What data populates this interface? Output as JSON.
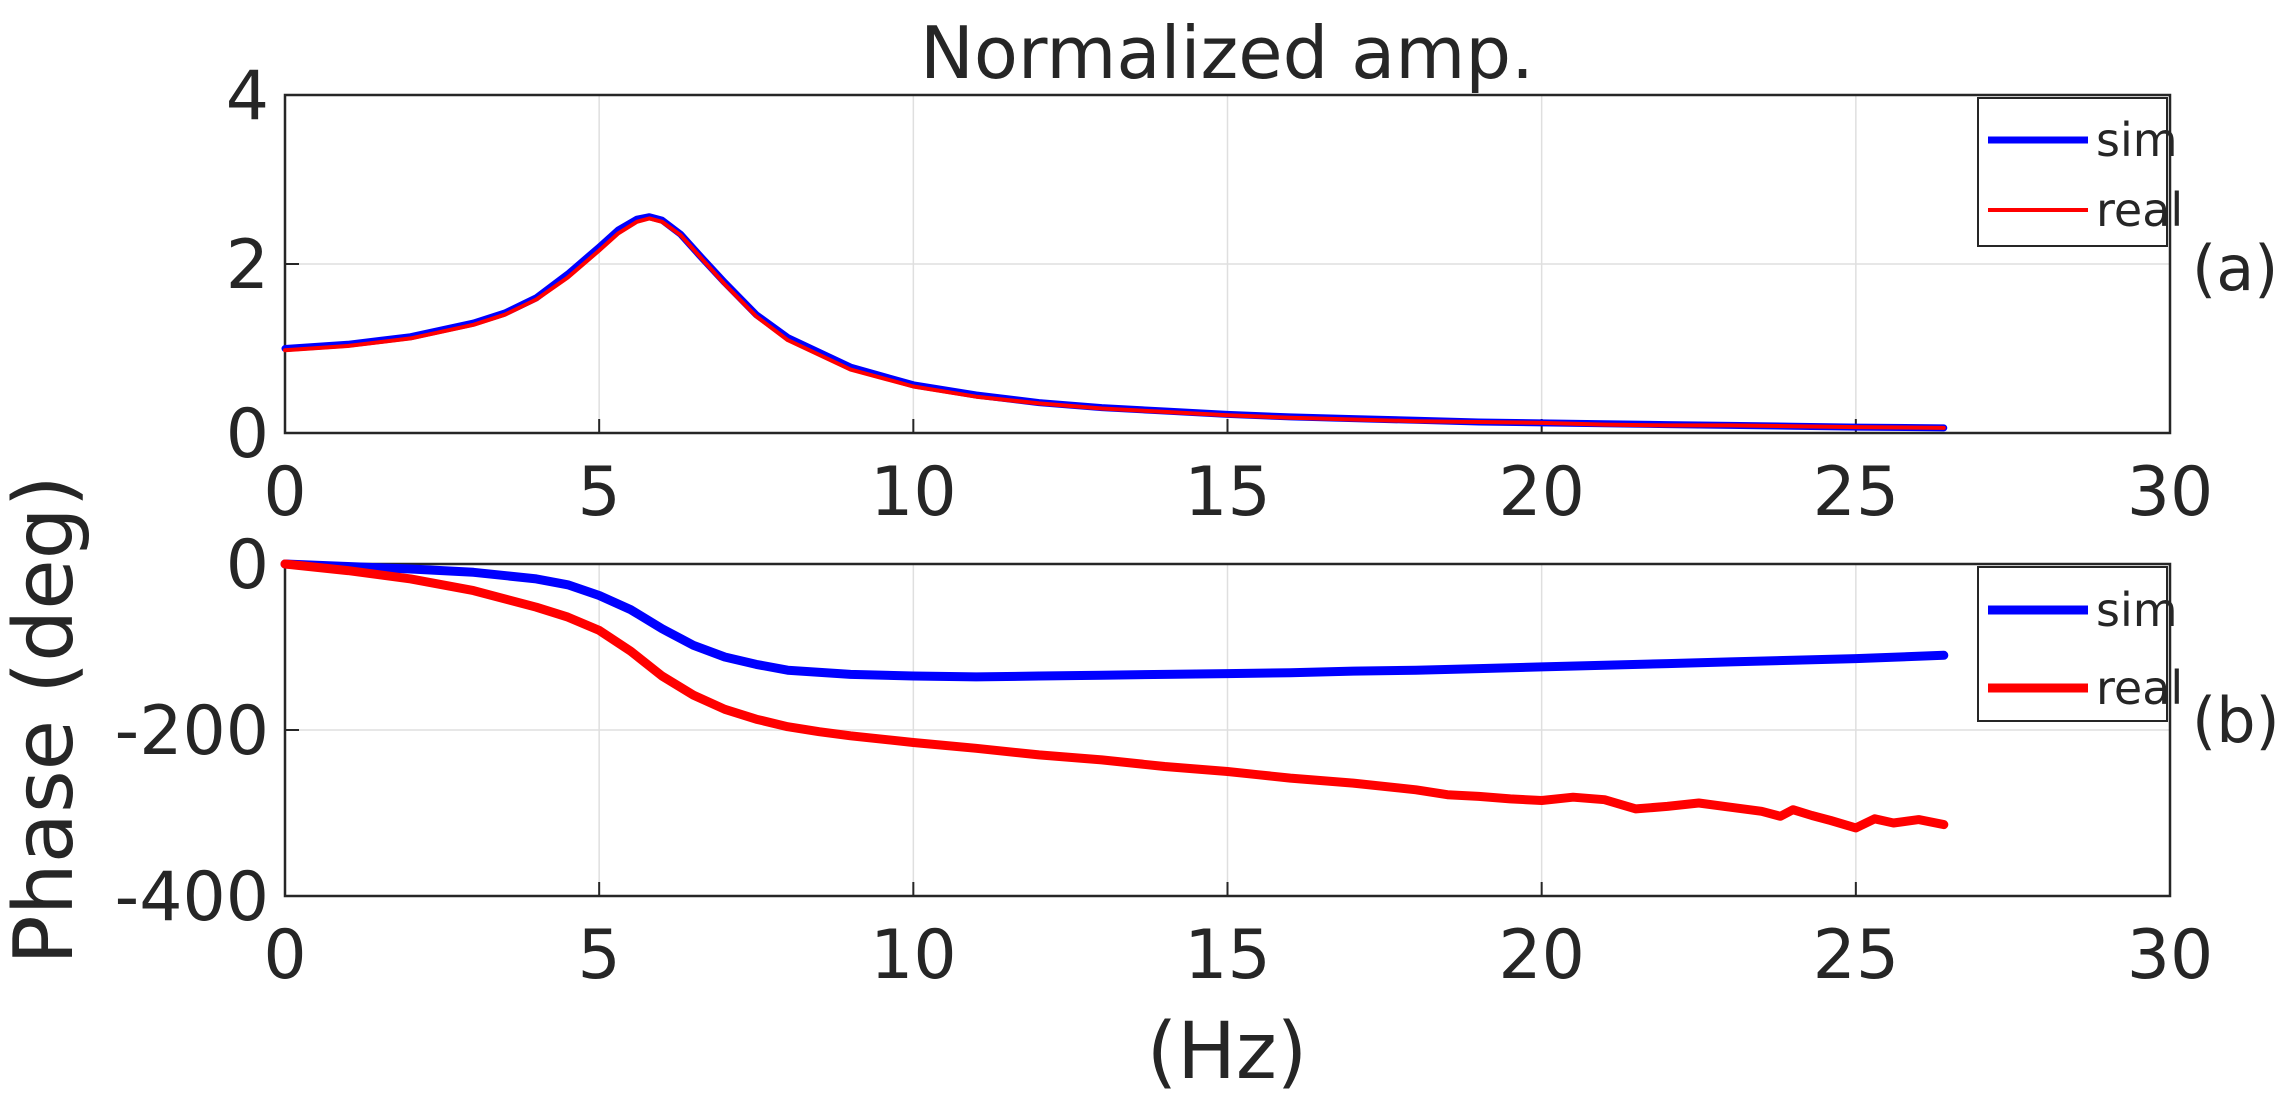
{
  "chart_data": [
    {
      "id": "a",
      "type": "line",
      "title": "Normalized amp.",
      "panel_label": "(a)",
      "xlabel": "",
      "ylabel": "",
      "xlim": [
        0,
        30
      ],
      "ylim": [
        0,
        4
      ],
      "xticks": [
        0,
        5,
        10,
        15,
        20,
        25,
        30
      ],
      "yticks": [
        0,
        2,
        4
      ],
      "xtick_labels": [
        "0",
        "5",
        "10",
        "15",
        "20",
        "25",
        "30"
      ],
      "ytick_labels": [
        "0",
        "2",
        "4"
      ],
      "grid": true,
      "legend": "top-right",
      "series": [
        {
          "name": "sim",
          "color": "#0000ff",
          "x": [
            0,
            1,
            2,
            3,
            3.5,
            4,
            4.5,
            5,
            5.3,
            5.6,
            5.8,
            6,
            6.3,
            6.6,
            7,
            7.5,
            8,
            9,
            10,
            11,
            12,
            13,
            14,
            15,
            16,
            17,
            18,
            19,
            20,
            21,
            22,
            23,
            24,
            25,
            26.4
          ],
          "y": [
            1.0,
            1.05,
            1.14,
            1.3,
            1.42,
            1.6,
            1.88,
            2.2,
            2.4,
            2.53,
            2.56,
            2.52,
            2.35,
            2.1,
            1.78,
            1.4,
            1.13,
            0.78,
            0.57,
            0.45,
            0.36,
            0.3,
            0.26,
            0.22,
            0.19,
            0.17,
            0.15,
            0.13,
            0.12,
            0.11,
            0.1,
            0.09,
            0.08,
            0.07,
            0.06
          ]
        },
        {
          "name": "real",
          "color": "#ff0000",
          "x": [
            0,
            1,
            2,
            3,
            3.5,
            4,
            4.5,
            5,
            5.3,
            5.6,
            5.8,
            6,
            6.3,
            6.6,
            7,
            7.5,
            8,
            9,
            10,
            11,
            12,
            13,
            14,
            15,
            16,
            17,
            18,
            19,
            20,
            21,
            22,
            23,
            24,
            25,
            26.4
          ],
          "y": [
            0.98,
            1.03,
            1.12,
            1.28,
            1.4,
            1.58,
            1.84,
            2.16,
            2.36,
            2.5,
            2.54,
            2.5,
            2.34,
            2.09,
            1.76,
            1.38,
            1.1,
            0.75,
            0.55,
            0.43,
            0.35,
            0.29,
            0.25,
            0.21,
            0.18,
            0.16,
            0.14,
            0.13,
            0.12,
            0.1,
            0.09,
            0.09,
            0.08,
            0.07,
            0.06
          ]
        }
      ]
    },
    {
      "id": "b",
      "type": "line",
      "title": "",
      "panel_label": "(b)",
      "xlabel": "(Hz)",
      "ylabel": "Phase (deg)",
      "xlim": [
        0,
        30
      ],
      "ylim": [
        -400,
        0
      ],
      "xticks": [
        0,
        5,
        10,
        15,
        20,
        25,
        30
      ],
      "yticks": [
        0,
        -200,
        -400
      ],
      "xtick_labels": [
        "0",
        "5",
        "10",
        "15",
        "20",
        "25",
        "30"
      ],
      "ytick_labels": [
        "0",
        "-200",
        "-400"
      ],
      "grid": true,
      "legend": "top-right",
      "series": [
        {
          "name": "sim",
          "color": "#0000ff",
          "x": [
            0,
            1,
            2,
            3,
            4,
            4.5,
            5,
            5.5,
            6,
            6.5,
            7,
            7.5,
            8,
            9,
            10,
            11,
            12,
            13,
            14,
            15,
            16,
            17,
            18,
            19,
            20,
            21,
            22,
            23,
            24,
            25,
            26.4
          ],
          "y": [
            0,
            -3,
            -6,
            -10,
            -18,
            -25,
            -38,
            -55,
            -78,
            -98,
            -112,
            -121,
            -128,
            -133,
            -135,
            -136,
            -135,
            -134,
            -133,
            -132,
            -131,
            -129,
            -128,
            -126,
            -124,
            -122,
            -120,
            -118,
            -116,
            -114,
            -110
          ]
        },
        {
          "name": "real",
          "color": "#ff0000",
          "x": [
            0,
            1,
            2,
            3,
            4,
            4.5,
            5,
            5.5,
            6,
            6.5,
            7,
            7.5,
            8,
            8.5,
            9,
            10,
            11,
            12,
            12.5,
            13,
            14,
            15,
            15.5,
            16,
            17,
            18,
            18.5,
            19,
            19.5,
            20,
            20.5,
            21,
            21.5,
            22,
            22.5,
            23,
            23.5,
            23.8,
            24,
            24.3,
            24.6,
            25,
            25.3,
            25.6,
            26,
            26.4
          ],
          "y": [
            0,
            -8,
            -18,
            -32,
            -52,
            -64,
            -80,
            -105,
            -135,
            -158,
            -175,
            -187,
            -196,
            -202,
            -207,
            -215,
            -222,
            -230,
            -233,
            -236,
            -244,
            -250,
            -254,
            -258,
            -264,
            -272,
            -278,
            -280,
            -283,
            -285,
            -281,
            -284,
            -295,
            -292,
            -288,
            -293,
            -298,
            -304,
            -296,
            -303,
            -309,
            -318,
            -307,
            -312,
            -308,
            -314
          ]
        }
      ]
    }
  ]
}
